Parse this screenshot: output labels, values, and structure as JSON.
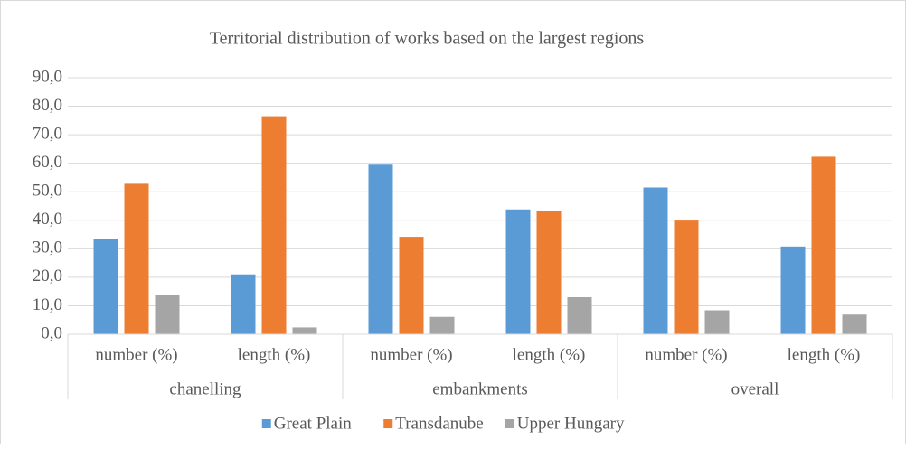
{
  "chart_data": {
    "type": "bar",
    "title": "Territorial distribution of works based on the largest regions",
    "categories": [
      "number (%)",
      "length (%)",
      "number (%)",
      "length (%)",
      "number (%)",
      "length (%)"
    ],
    "groups": [
      "chanelling",
      "embankments",
      "overall"
    ],
    "series": [
      {
        "name": "Great Plain",
        "color": "#5b9bd5",
        "values": [
          33.3,
          21.0,
          59.5,
          43.8,
          51.5,
          30.8
        ]
      },
      {
        "name": "Transdanube",
        "color": "#ed7d31",
        "values": [
          52.8,
          76.5,
          34.2,
          43.1,
          39.9,
          62.3
        ]
      },
      {
        "name": "Upper Hungary",
        "color": "#a5a5a5",
        "values": [
          13.8,
          2.4,
          6.1,
          13.0,
          8.4,
          6.9
        ]
      }
    ],
    "ylim": [
      0,
      90
    ],
    "yticks": [
      {
        "value": 0,
        "label": "0,0"
      },
      {
        "value": 10,
        "label": "10,0"
      },
      {
        "value": 20,
        "label": "20,0"
      },
      {
        "value": 30,
        "label": "30,0"
      },
      {
        "value": 40,
        "label": "40,0"
      },
      {
        "value": 50,
        "label": "50,0"
      },
      {
        "value": 60,
        "label": "60,0"
      },
      {
        "value": 70,
        "label": "70,0"
      },
      {
        "value": 80,
        "label": "80,0"
      },
      {
        "value": 90,
        "label": "90,0"
      }
    ],
    "grid": true,
    "legend": "bottom"
  }
}
